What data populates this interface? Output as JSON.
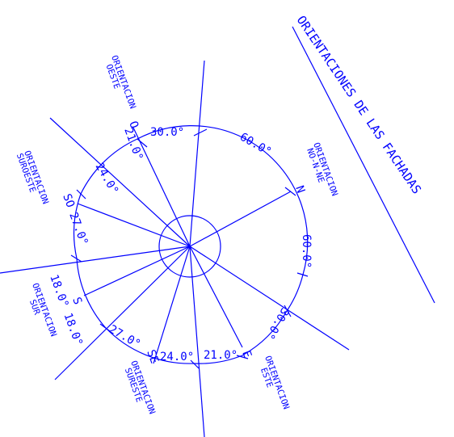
{
  "title": "ORIENTACIONES DE LAS FACHADAS",
  "color": "#0000ff",
  "orientation_labels": {
    "oeste": [
      "ORIENTACION",
      "OESTE"
    ],
    "no_n_ne": [
      "ORIENTACION",
      "NO-N-NE"
    ],
    "suroeste": [
      "ORIENTACION",
      "SUROESTE"
    ],
    "sur": [
      "ORIENTACION",
      "SUR"
    ],
    "sureste": [
      "ORIENTACION",
      "SURESTE"
    ],
    "este": [
      "ORIENTACION",
      "ESTE"
    ]
  },
  "sector_letters": {
    "o": "O",
    "n": "N",
    "so": "SO",
    "s": "S",
    "se": "SE",
    "e": "E"
  },
  "angle_labels": {
    "a30_top": "30.0°",
    "a60_top": "60.0°",
    "a60_right": "60.0°",
    "a30_right": "30.0°",
    "a21_top": "21.0°",
    "a24_top": "24.0°",
    "a27_left": "27.0°",
    "a18_left": "18.0° 18.0°",
    "a27_bottom": "27.0°",
    "a24_bottom": "24.0°",
    "a21_bottom": "21.0°"
  }
}
